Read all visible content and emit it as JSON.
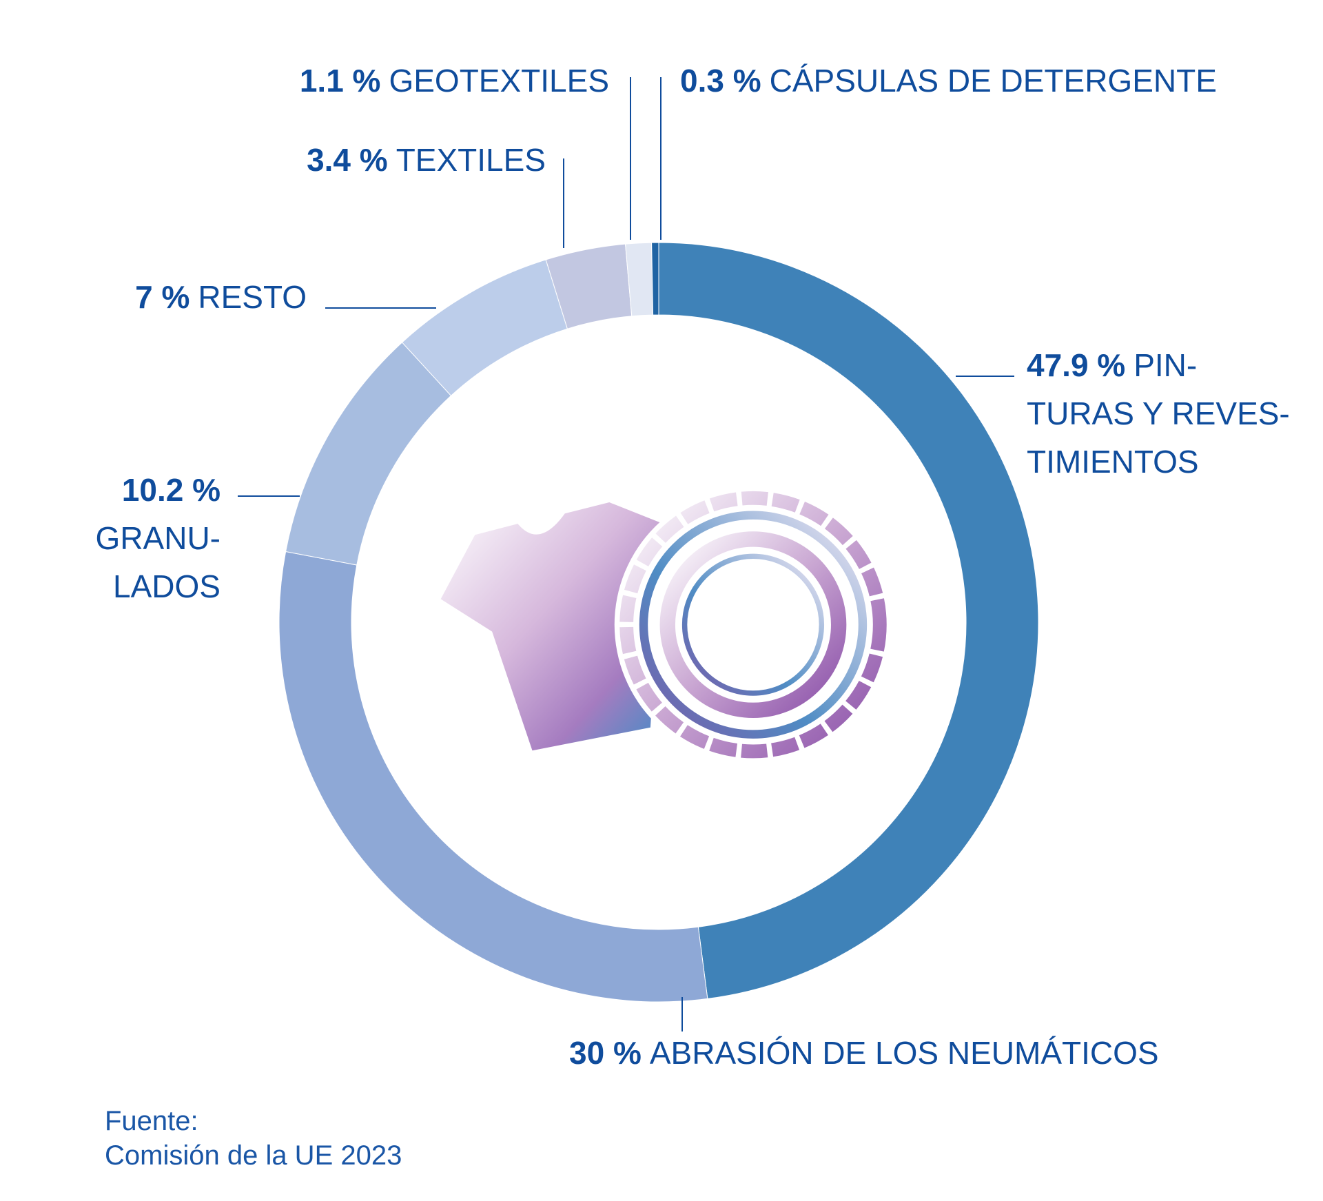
{
  "chart_data": {
    "type": "donut",
    "categories": [
      "PIN-\nTURAS Y REVES-\nTIMIENTOS",
      "ABRASIÓN DE LOS NEUMÁTICOS",
      "GRANU-\nLADOS",
      "RESTO",
      "TEXTILES",
      "GEOTEXTILES",
      "CÁPSULAS DE DETERGENTE"
    ],
    "values": [
      47.9,
      30,
      10.2,
      7,
      3.4,
      1.1,
      0.3
    ],
    "value_labels": [
      "47.9 %",
      "30 %",
      "10.2 %",
      "7 %",
      "3.4 %",
      "1.1 %",
      "0.3 %"
    ],
    "colors": [
      "#3f82b8",
      "#8ea8d6",
      "#a7bde0",
      "#bccdea",
      "#c2c7e1",
      "#e1e7f3",
      "#1f63a3"
    ],
    "source": {
      "label": "Fuente:",
      "text": "Comisión de la UE 2023"
    }
  }
}
